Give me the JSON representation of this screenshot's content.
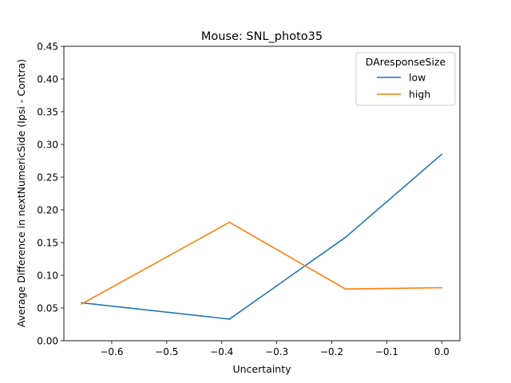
{
  "chart_data": {
    "type": "line",
    "title": "Mouse: SNL_photo35",
    "xlabel": "Uncertainty",
    "ylabel": "Average Difference in nextNumericSide (Ipsi - Contra)",
    "xlim": [
      -0.687,
      0.033
    ],
    "ylim": [
      0,
      0.45
    ],
    "xticks": [
      -0.6,
      -0.5,
      -0.4,
      -0.3,
      -0.2,
      -0.1,
      0.0
    ],
    "xtick_labels": [
      "−0.6",
      "−0.5",
      "−0.4",
      "−0.3",
      "−0.2",
      "−0.1",
      "0.0"
    ],
    "yticks": [
      0,
      0.05,
      0.1,
      0.15,
      0.2,
      0.25,
      0.3,
      0.35,
      0.4,
      0.45
    ],
    "ytick_labels": [
      "0.00",
      "0.05",
      "0.10",
      "0.15",
      "0.20",
      "0.25",
      "0.30",
      "0.35",
      "0.40",
      "0.45"
    ],
    "grid": false,
    "legend": {
      "title": "DAresponseSize",
      "placement": "top-right"
    },
    "series": [
      {
        "name": "low",
        "color": "#1f77b4",
        "x": [
          -0.655,
          -0.386,
          -0.175,
          0.0
        ],
        "y": [
          0.058,
          0.033,
          0.158,
          0.285
        ]
      },
      {
        "name": "high",
        "color": "#ff7f0e",
        "x": [
          -0.655,
          -0.386,
          -0.175,
          0.0
        ],
        "y": [
          0.056,
          0.181,
          0.079,
          0.081
        ]
      }
    ]
  }
}
